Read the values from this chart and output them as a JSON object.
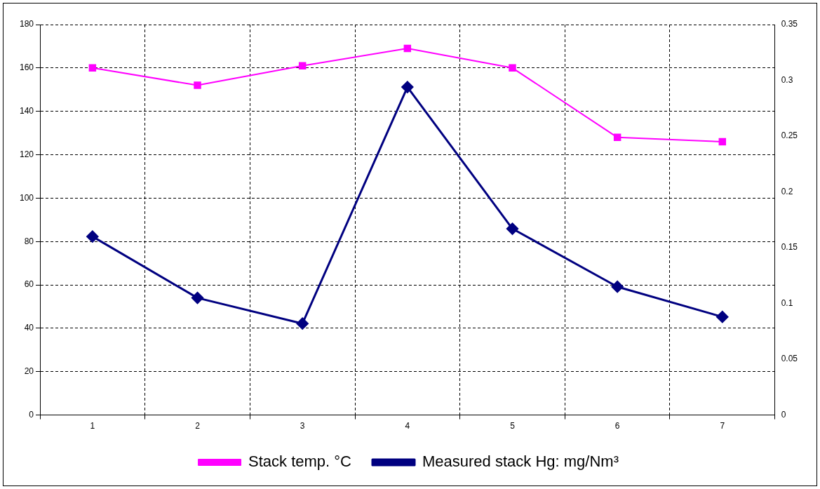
{
  "chart_data": {
    "type": "line",
    "categories": [
      "1",
      "2",
      "3",
      "4",
      "5",
      "6",
      "7"
    ],
    "series": [
      {
        "name": "Stack temp. °C",
        "color": "#ff00ff",
        "marker": "square",
        "values": [
          160,
          152,
          161,
          169,
          160,
          128,
          126
        ]
      },
      {
        "name": "Measured stack Hg: mg/Nm³",
        "color": "#000080",
        "marker": "diamond",
        "axis": "y2",
        "values": [
          0.16,
          0.105,
          0.082,
          0.294,
          0.167,
          0.115,
          0.088
        ]
      }
    ],
    "ylim": [
      0,
      180
    ],
    "yticks": [
      0,
      20,
      40,
      60,
      80,
      100,
      120,
      140,
      160,
      180
    ],
    "y2lim": [
      0,
      0.35
    ],
    "y2ticks": [
      0,
      0.05,
      0.1,
      0.15,
      0.2,
      0.25,
      0.3,
      0.35
    ],
    "grid": true,
    "legend": "bottom",
    "line_style": "solid"
  }
}
